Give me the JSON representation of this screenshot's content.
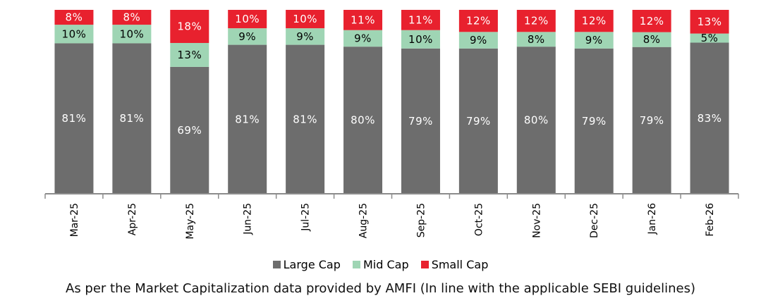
{
  "chart_data": {
    "type": "bar",
    "stacked": true,
    "normalized_percent": true,
    "categories": [
      "Mar-25",
      "Apr-25",
      "May-25",
      "Jun-25",
      "Jul-25",
      "Aug-25",
      "Sep-25",
      "Oct-25",
      "Nov-25",
      "Dec-25",
      "Jan-26",
      "Feb-26"
    ],
    "series": [
      {
        "name": "Large Cap",
        "color": "#6d6d6d",
        "label_color": "#ffffff",
        "values": [
          81,
          81,
          69,
          81,
          81,
          80,
          79,
          79,
          80,
          79,
          79,
          83
        ]
      },
      {
        "name": "Mid Cap",
        "color": "#9fd5b4",
        "label_color": "#000000",
        "values": [
          10,
          10,
          13,
          9,
          9,
          9,
          10,
          9,
          8,
          9,
          8,
          5
        ]
      },
      {
        "name": "Small Cap",
        "color": "#e8212e",
        "label_color": "#ffffff",
        "values": [
          8,
          8,
          18,
          10,
          10,
          11,
          11,
          12,
          12,
          12,
          12,
          13
        ]
      }
    ],
    "value_suffix": "%",
    "legend_position": "bottom",
    "grid": false
  },
  "footnote": "As per the Market Capitalization data provided by AMFI (In line with the applicable SEBI guidelines)"
}
